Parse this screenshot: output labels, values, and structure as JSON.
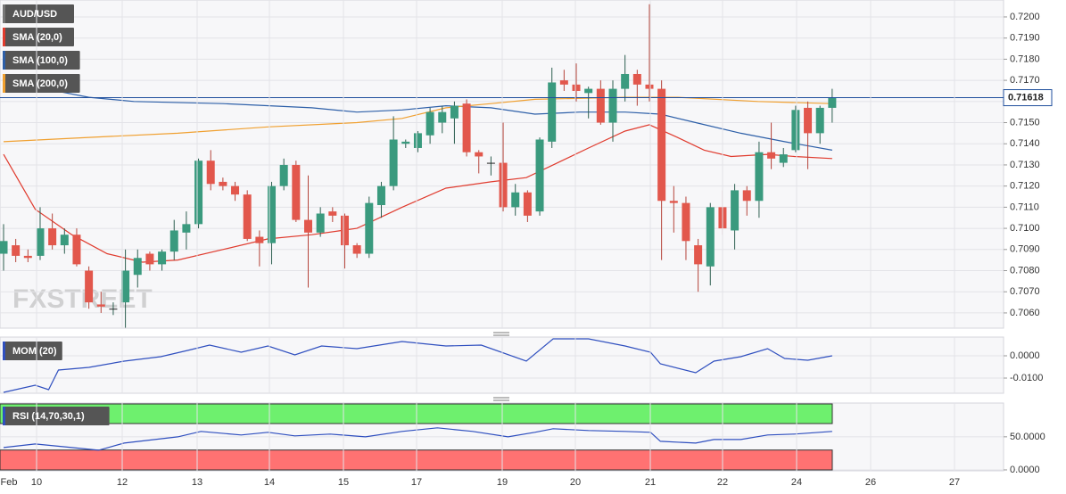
{
  "chart_data": [
    {
      "type": "candlestick",
      "title": "AUD/USD",
      "watermark": "FXSTREET",
      "up_color": "#3a9a7e",
      "down_color": "#e2574c",
      "title_color": "#777777",
      "ylim": [
        0.70528,
        0.7208
      ],
      "yticks": [
        {
          "value": 0.706,
          "label": "0.7060"
        },
        {
          "value": 0.707,
          "label": "0.7070"
        },
        {
          "value": 0.708,
          "label": "0.7080"
        },
        {
          "value": 0.709,
          "label": "0.7090"
        },
        {
          "value": 0.71,
          "label": "0.7100"
        },
        {
          "value": 0.711,
          "label": "0.7110"
        },
        {
          "value": 0.712,
          "label": "0.7120"
        },
        {
          "value": 0.713,
          "label": "0.7130"
        },
        {
          "value": 0.714,
          "label": "0.7140"
        },
        {
          "value": 0.715,
          "label": "0.7150"
        },
        {
          "value": 0.716,
          "label": "0.7160"
        },
        {
          "value": 0.717,
          "label": "0.7170"
        },
        {
          "value": 0.718,
          "label": "0.7180"
        },
        {
          "value": 0.719,
          "label": "0.7190"
        },
        {
          "value": 0.72,
          "label": "0.7200"
        }
      ],
      "grid": true,
      "last_price": 0.71618,
      "last_price_color": "#1f4e9c",
      "ohlc": [
        [
          0.7088,
          0.7102,
          0.708,
          0.7094
        ],
        [
          0.7092,
          0.7095,
          0.7084,
          0.7087
        ],
        [
          0.7087,
          0.709,
          0.7084,
          0.7086
        ],
        [
          0.7087,
          0.711,
          0.7085,
          0.71
        ],
        [
          0.71,
          0.7107,
          0.709,
          0.7092
        ],
        [
          0.7092,
          0.71,
          0.7088,
          0.7097
        ],
        [
          0.7097,
          0.71,
          0.7082,
          0.7083
        ],
        [
          0.708,
          0.7082,
          0.7062,
          0.7065
        ],
        [
          0.7064,
          0.707,
          0.706,
          0.7063
        ],
        [
          0.7062,
          0.7065,
          0.7059,
          0.7062
        ],
        [
          0.7065,
          0.709,
          0.7053,
          0.708
        ],
        [
          0.7078,
          0.709,
          0.7072,
          0.7086
        ],
        [
          0.7088,
          0.7089,
          0.708,
          0.7083
        ],
        [
          0.7083,
          0.709,
          0.708,
          0.7089
        ],
        [
          0.7089,
          0.7104,
          0.7085,
          0.7099
        ],
        [
          0.7098,
          0.7108,
          0.709,
          0.7102
        ],
        [
          0.7102,
          0.7133,
          0.71,
          0.7132
        ],
        [
          0.7132,
          0.7137,
          0.7118,
          0.7121
        ],
        [
          0.7122,
          0.7124,
          0.7118,
          0.712
        ],
        [
          0.712,
          0.7122,
          0.7113,
          0.7116
        ],
        [
          0.7116,
          0.7118,
          0.7094,
          0.7095
        ],
        [
          0.7096,
          0.7099,
          0.7082,
          0.7093
        ],
        [
          0.7093,
          0.7122,
          0.7083,
          0.712
        ],
        [
          0.712,
          0.7133,
          0.7118,
          0.713
        ],
        [
          0.713,
          0.7132,
          0.7103,
          0.7104
        ],
        [
          0.7104,
          0.7125,
          0.7072,
          0.7098
        ],
        [
          0.7098,
          0.711,
          0.7096,
          0.7107
        ],
        [
          0.7108,
          0.711,
          0.7103,
          0.7106
        ],
        [
          0.7106,
          0.7107,
          0.7081,
          0.7092
        ],
        [
          0.7092,
          0.7093,
          0.7086,
          0.7088
        ],
        [
          0.7088,
          0.7115,
          0.7086,
          0.7112
        ],
        [
          0.7111,
          0.7122,
          0.7105,
          0.712
        ],
        [
          0.712,
          0.7153,
          0.7118,
          0.7142
        ],
        [
          0.714,
          0.7142,
          0.7138,
          0.7141
        ],
        [
          0.7138,
          0.7146,
          0.7136,
          0.7145
        ],
        [
          0.7144,
          0.7157,
          0.714,
          0.7155
        ],
        [
          0.715,
          0.7158,
          0.7145,
          0.7155
        ],
        [
          0.7152,
          0.716,
          0.714,
          0.7158
        ],
        [
          0.7159,
          0.7161,
          0.7134,
          0.7136
        ],
        [
          0.7136,
          0.7137,
          0.7126,
          0.7134
        ],
        [
          0.7131,
          0.7134,
          0.7125,
          0.7131
        ],
        [
          0.7131,
          0.715,
          0.7108,
          0.711
        ],
        [
          0.711,
          0.7121,
          0.7106,
          0.7117
        ],
        [
          0.7117,
          0.7118,
          0.7103,
          0.7106
        ],
        [
          0.7108,
          0.7143,
          0.7106,
          0.7142
        ],
        [
          0.7141,
          0.7176,
          0.7138,
          0.7169
        ],
        [
          0.717,
          0.7175,
          0.7165,
          0.7168
        ],
        [
          0.7168,
          0.7178,
          0.716,
          0.7165
        ],
        [
          0.7164,
          0.7167,
          0.7152,
          0.7166
        ],
        [
          0.7166,
          0.717,
          0.7149,
          0.715
        ],
        [
          0.715,
          0.717,
          0.7141,
          0.7166
        ],
        [
          0.7166,
          0.7182,
          0.716,
          0.7173
        ],
        [
          0.7173,
          0.7175,
          0.7158,
          0.7168
        ],
        [
          0.7168,
          0.7206,
          0.716,
          0.7166
        ],
        [
          0.7166,
          0.717,
          0.7085,
          0.7113
        ],
        [
          0.7113,
          0.712,
          0.7098,
          0.7112
        ],
        [
          0.7112,
          0.7115,
          0.7085,
          0.7094
        ],
        [
          0.7092,
          0.7095,
          0.707,
          0.7083
        ],
        [
          0.7082,
          0.7112,
          0.7073,
          0.711
        ],
        [
          0.711,
          0.7118,
          0.7097,
          0.71
        ],
        [
          0.7099,
          0.7121,
          0.709,
          0.7118
        ],
        [
          0.7118,
          0.712,
          0.7106,
          0.7113
        ],
        [
          0.7113,
          0.7141,
          0.7105,
          0.7136
        ],
        [
          0.7136,
          0.715,
          0.7128,
          0.7133
        ],
        [
          0.7131,
          0.7138,
          0.7129,
          0.7135
        ],
        [
          0.7137,
          0.7158,
          0.7136,
          0.7156
        ],
        [
          0.7157,
          0.716,
          0.7128,
          0.7145
        ],
        [
          0.7145,
          0.7158,
          0.714,
          0.7157
        ],
        [
          0.7157,
          0.7166,
          0.715,
          0.7162
        ]
      ],
      "series": [
        {
          "name": "SMA (20,0)",
          "color": "#e03b2e",
          "x": [
            0,
            2.6,
            5.6,
            8.5,
            11.4,
            14.3,
            18,
            21.7,
            25.3,
            29,
            32.7,
            36.3,
            40,
            42.9,
            45.1,
            48,
            51,
            53,
            55.3,
            57.5,
            59.7,
            62.7,
            64.9,
            68
          ],
          "values": [
            0.7135,
            0.7109,
            0.7097,
            0.7088,
            0.7084,
            0.7085,
            0.709,
            0.7095,
            0.7097,
            0.71,
            0.711,
            0.7119,
            0.7122,
            0.7124,
            0.713,
            0.7138,
            0.7146,
            0.7149,
            0.7143,
            0.7137,
            0.7134,
            0.7135,
            0.7134,
            0.7133
          ]
        },
        {
          "name": "SMA (100,0)",
          "color": "#2d5fa8",
          "x": [
            0,
            3.4,
            7,
            10.7,
            18,
            25.3,
            29,
            32.7,
            36.3,
            40,
            43.6,
            47.3,
            51,
            53.9,
            56.8,
            60.5,
            64.1,
            68
          ],
          "values": [
            0.7172,
            0.7166,
            0.7162,
            0.716,
            0.7159,
            0.7157,
            0.7155,
            0.7156,
            0.7158,
            0.7157,
            0.7154,
            0.7155,
            0.7155,
            0.7154,
            0.715,
            0.7145,
            0.7141,
            0.7137
          ]
        },
        {
          "name": "SMA (200,0)",
          "color": "#f0a030",
          "x": [
            0,
            7,
            14.3,
            21.7,
            29,
            32.7,
            36.3,
            40,
            43.6,
            51,
            55.3,
            61.9,
            68
          ],
          "values": [
            0.7141,
            0.7143,
            0.7145,
            0.7148,
            0.715,
            0.7152,
            0.7157,
            0.7159,
            0.7161,
            0.7162,
            0.7162,
            0.716,
            0.7159
          ]
        }
      ]
    },
    {
      "type": "line",
      "ylim": [
        -0.0168,
        0.0084
      ],
      "grid": true,
      "yticks": [
        {
          "value": 0,
          "label": "0.0000"
        },
        {
          "value": -0.01,
          "label": "-0.0100"
        }
      ],
      "series": [
        {
          "name": "MOM (20)",
          "color": "#2f4fbf",
          "x": [
            0,
            2.6,
            3.7,
            4.5,
            7,
            9.9,
            12.9,
            15.1,
            16.9,
            19.5,
            21.7,
            23.9,
            26.1,
            29,
            32.7,
            36.3,
            39.2,
            42.9,
            45.1,
            48,
            51,
            53.1,
            53.9,
            56.8,
            58.3,
            60.5,
            62.7,
            64.1,
            66,
            68
          ],
          "values": [
            -0.0164,
            -0.0132,
            -0.0152,
            -0.0064,
            -0.0052,
            -0.0024,
            -0.0004,
            0.0024,
            0.0048,
            0.0016,
            0.0044,
            0.0004,
            0.0044,
            0.0032,
            0.0064,
            0.0044,
            0.0048,
            -0.0024,
            0.0076,
            0.0076,
            0.0044,
            0.0016,
            -0.0036,
            -0.0076,
            -0.0024,
            -0.0004,
            0.0032,
            -0.0012,
            -0.002,
            0
          ]
        }
      ]
    },
    {
      "type": "line",
      "ylim": [
        -1.4,
        101
      ],
      "grid": true,
      "overbought": 70,
      "oversold": 30,
      "overbought_color": "#6ef06e",
      "oversold_color": "#ff7272",
      "yticks": [
        {
          "value": 50,
          "label": "50.0000"
        },
        {
          "value": 0,
          "label": "0.0000"
        }
      ],
      "series": [
        {
          "name": "RSI (14,70,30,1)",
          "color": "#2f4fbf",
          "x": [
            0,
            2.6,
            5.6,
            7.8,
            9.9,
            14.3,
            16.2,
            19.5,
            21.7,
            23.9,
            26.8,
            29.7,
            32.7,
            35.6,
            38.5,
            41.4,
            43.6,
            45.1,
            48,
            51,
            53.1,
            53.9,
            56.8,
            58.3,
            60.5,
            62.7,
            64.9,
            68
          ],
          "values": [
            33.8,
            39.2,
            33.8,
            29.7,
            40.5,
            50,
            58.1,
            52.7,
            56.8,
            51.4,
            54.1,
            50,
            58.1,
            63.5,
            58.1,
            50,
            56.8,
            62.2,
            59.5,
            58.1,
            56.8,
            43.2,
            40.5,
            45.9,
            45.9,
            52.7,
            54.1,
            58.1
          ]
        }
      ],
      "x_labels": [
        "Feb",
        "10",
        "12",
        "13",
        "14",
        "15",
        "17",
        "19",
        "20",
        "21",
        "22",
        "24",
        "26",
        "27"
      ]
    }
  ]
}
